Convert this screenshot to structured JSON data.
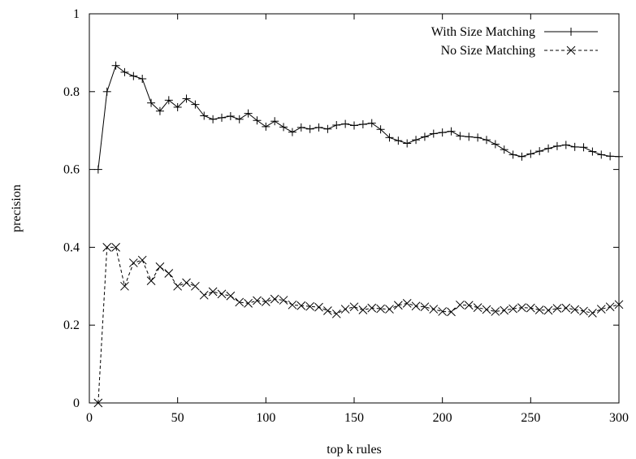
{
  "chart_data": {
    "type": "line",
    "xlabel": "top k rules",
    "ylabel": "precision",
    "xlim": [
      0,
      300
    ],
    "ylim": [
      0,
      1
    ],
    "x_ticks": [
      "0",
      "50",
      "100",
      "150",
      "200",
      "250",
      "300"
    ],
    "y_ticks": [
      "0",
      "0.2",
      "0.4",
      "0.6",
      "0.8",
      "1"
    ],
    "grid": false,
    "legend_position": "top-right",
    "series": [
      {
        "name": "With Size Matching",
        "line_style": "solid",
        "marker": "plus",
        "color": "#000000",
        "x": [
          5,
          10,
          15,
          20,
          25,
          30,
          35,
          40,
          45,
          50,
          55,
          60,
          65,
          70,
          75,
          80,
          85,
          90,
          95,
          100,
          105,
          110,
          115,
          120,
          125,
          130,
          135,
          140,
          145,
          150,
          155,
          160,
          165,
          170,
          175,
          180,
          185,
          190,
          195,
          200,
          205,
          210,
          215,
          220,
          225,
          230,
          235,
          240,
          245,
          250,
          255,
          260,
          265,
          270,
          275,
          280,
          285,
          290,
          295,
          300
        ],
        "y": [
          0.6,
          0.8,
          0.867,
          0.85,
          0.84,
          0.833,
          0.771,
          0.75,
          0.778,
          0.76,
          0.782,
          0.767,
          0.738,
          0.729,
          0.733,
          0.737,
          0.729,
          0.744,
          0.726,
          0.71,
          0.724,
          0.709,
          0.696,
          0.708,
          0.704,
          0.708,
          0.704,
          0.714,
          0.717,
          0.713,
          0.716,
          0.719,
          0.703,
          0.682,
          0.674,
          0.667,
          0.676,
          0.684,
          0.692,
          0.695,
          0.698,
          0.686,
          0.684,
          0.682,
          0.676,
          0.665,
          0.651,
          0.638,
          0.633,
          0.64,
          0.647,
          0.654,
          0.66,
          0.663,
          0.658,
          0.657,
          0.646,
          0.638,
          0.634,
          0.633
        ]
      },
      {
        "name": "No Size Matching",
        "line_style": "dashed",
        "marker": "x",
        "color": "#000000",
        "x": [
          5,
          10,
          15,
          20,
          25,
          30,
          35,
          40,
          45,
          50,
          55,
          60,
          65,
          70,
          75,
          80,
          85,
          90,
          95,
          100,
          105,
          110,
          115,
          120,
          125,
          130,
          135,
          140,
          145,
          150,
          155,
          160,
          165,
          170,
          175,
          180,
          185,
          190,
          195,
          200,
          205,
          210,
          215,
          220,
          225,
          230,
          235,
          240,
          245,
          250,
          255,
          260,
          265,
          270,
          275,
          280,
          285,
          290,
          295,
          300
        ],
        "y": [
          0.0,
          0.4,
          0.4,
          0.3,
          0.36,
          0.367,
          0.314,
          0.35,
          0.333,
          0.3,
          0.309,
          0.3,
          0.277,
          0.286,
          0.28,
          0.275,
          0.259,
          0.256,
          0.263,
          0.26,
          0.267,
          0.264,
          0.252,
          0.25,
          0.248,
          0.246,
          0.237,
          0.229,
          0.241,
          0.247,
          0.239,
          0.244,
          0.242,
          0.241,
          0.251,
          0.256,
          0.249,
          0.247,
          0.241,
          0.235,
          0.234,
          0.252,
          0.251,
          0.245,
          0.24,
          0.235,
          0.238,
          0.242,
          0.245,
          0.244,
          0.239,
          0.238,
          0.243,
          0.244,
          0.24,
          0.236,
          0.231,
          0.241,
          0.247,
          0.253
        ]
      }
    ]
  }
}
